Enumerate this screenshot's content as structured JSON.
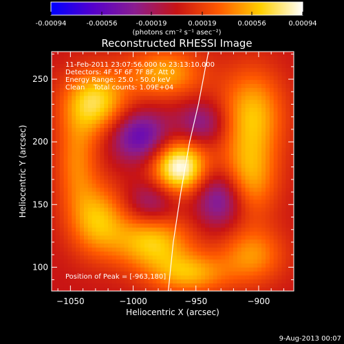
{
  "colorbar": {
    "ticks": [
      "-0.00094",
      "-0.00056",
      "-0.00019",
      "0.00019",
      "0.00056",
      "0.00094"
    ],
    "tick_values": [
      -0.00094,
      -0.00056,
      -0.00019,
      0.00019,
      0.00056,
      0.00094
    ],
    "range": [
      -0.00094,
      0.00094
    ],
    "unit_label": "(photons cm⁻² s⁻¹ asec⁻²)",
    "colors": [
      "#0000ff",
      "#5500cc",
      "#8a1d8f",
      "#c81414",
      "#ff5a00",
      "#ffd000",
      "#ffffff"
    ]
  },
  "chart_data": {
    "type": "heatmap",
    "title": "Reconstructed RHESSI Image",
    "xlabel": "Heliocentric X (arcsec)",
    "ylabel": "Heliocentric Y (arcsec)",
    "xlim": [
      -1065,
      -872
    ],
    "ylim": [
      81,
      272
    ],
    "xticks": [
      -1050,
      -1000,
      -950,
      -900
    ],
    "yticks": [
      100,
      150,
      200,
      250
    ],
    "xtick_labels": [
      "−1050",
      "−1000",
      "−950",
      "−900"
    ],
    "ytick_labels": [
      "100",
      "150",
      "200",
      "250"
    ],
    "annotations": [
      "11-Feb-2011 23:07:56.000 to 23:13:10.000",
      "Detectors: 4F 5F 6F 7F 8F, Att 0",
      "Energy Range: 25.0 - 50.0 keV",
      "Clean    Total counts: 1.09E+04"
    ],
    "peak_label": "Position of Peak = [-963,180]",
    "peak": {
      "x": -963,
      "y": 180
    },
    "limb_curve": [
      [
        -972,
        81
      ],
      [
        -968,
        120
      ],
      [
        -962,
        160
      ],
      [
        -955,
        200
      ],
      [
        -948,
        230
      ],
      [
        -940,
        272
      ]
    ],
    "sources": [
      {
        "x": -963,
        "y": 180,
        "value": 0.00094,
        "sx": 15,
        "sy": 15
      },
      {
        "x": -985,
        "y": 120,
        "value": 0.00062,
        "sx": 22,
        "sy": 16
      },
      {
        "x": -1028,
        "y": 138,
        "value": 0.00055,
        "sx": 16,
        "sy": 20
      },
      {
        "x": -1030,
        "y": 232,
        "value": 0.00068,
        "sx": 18,
        "sy": 18
      },
      {
        "x": -975,
        "y": 255,
        "value": 0.00052,
        "sx": 22,
        "sy": 14
      },
      {
        "x": -905,
        "y": 222,
        "value": 0.00058,
        "sx": 18,
        "sy": 26
      },
      {
        "x": -908,
        "y": 170,
        "value": 0.0005,
        "sx": 16,
        "sy": 22
      },
      {
        "x": -905,
        "y": 110,
        "value": 0.00045,
        "sx": 18,
        "sy": 16
      },
      {
        "x": -955,
        "y": 95,
        "value": 0.00052,
        "sx": 22,
        "sy": 12
      },
      {
        "x": -1045,
        "y": 185,
        "value": 0.0004,
        "sx": 12,
        "sy": 28
      },
      {
        "x": -995,
        "y": 205,
        "value": -0.00055,
        "sx": 16,
        "sy": 14
      },
      {
        "x": -930,
        "y": 155,
        "value": -0.0005,
        "sx": 14,
        "sy": 16
      },
      {
        "x": -945,
        "y": 215,
        "value": -0.00035,
        "sx": 14,
        "sy": 12
      },
      {
        "x": -985,
        "y": 152,
        "value": -0.00032,
        "sx": 14,
        "sy": 12
      }
    ]
  },
  "footer": {
    "date": "9-Aug-2013 00:07"
  }
}
